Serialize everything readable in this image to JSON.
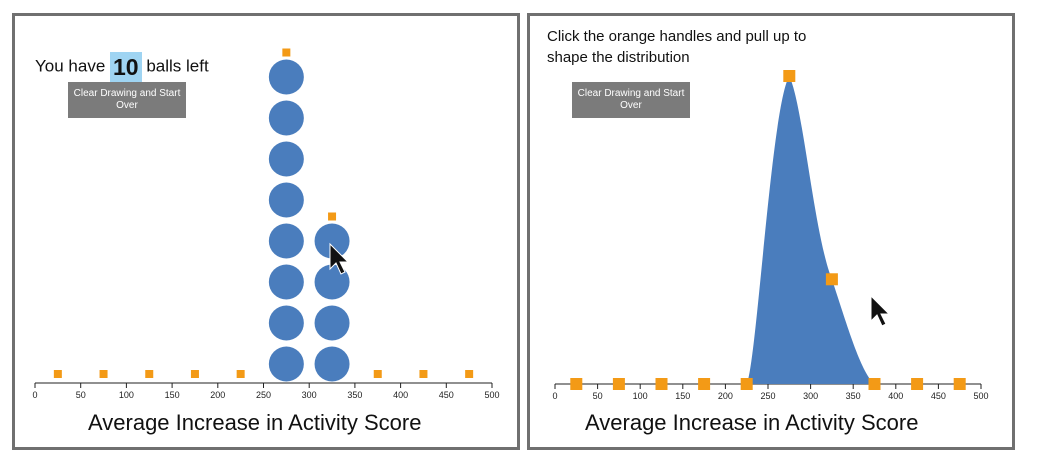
{
  "left_panel": {
    "balls_prefix": "You have",
    "balls_left": "10",
    "balls_suffix": "balls left",
    "clear_button": "Clear Drawing and Start Over",
    "chart_data": {
      "type": "scatter",
      "title": "",
      "xlabel": "Average Increase in Activity Score",
      "xlim": [
        0,
        500
      ],
      "xticks": [
        0,
        50,
        100,
        150,
        200,
        250,
        300,
        350,
        400,
        450,
        500
      ],
      "stacks": [
        {
          "x": 275,
          "count": 8
        },
        {
          "x": 325,
          "count": 4
        }
      ],
      "handle_x": [
        25,
        75,
        125,
        175,
        225,
        375,
        425,
        475
      ]
    }
  },
  "right_panel": {
    "instruction": "Click the orange handles and pull up to shape the distribution",
    "clear_button": "Clear Drawing and Start Over",
    "chart_data": {
      "type": "area",
      "title": "",
      "xlabel": "Average Increase in Activity Score",
      "xlim": [
        0,
        500
      ],
      "xticks": [
        0,
        50,
        100,
        150,
        200,
        250,
        300,
        350,
        400,
        450,
        500
      ],
      "x": [
        25,
        75,
        125,
        175,
        225,
        275,
        325,
        375,
        425,
        475
      ],
      "values": [
        0,
        0,
        0,
        0,
        0,
        1.0,
        0.34,
        0,
        0,
        0
      ]
    }
  },
  "colors": {
    "ball": "#4a7dbd",
    "handle": "#f39a16",
    "count_highlight": "#9fd4f2",
    "button": "#7b7b7b",
    "border": "#707070"
  },
  "icons": [
    "mouse-pointer-icon"
  ]
}
